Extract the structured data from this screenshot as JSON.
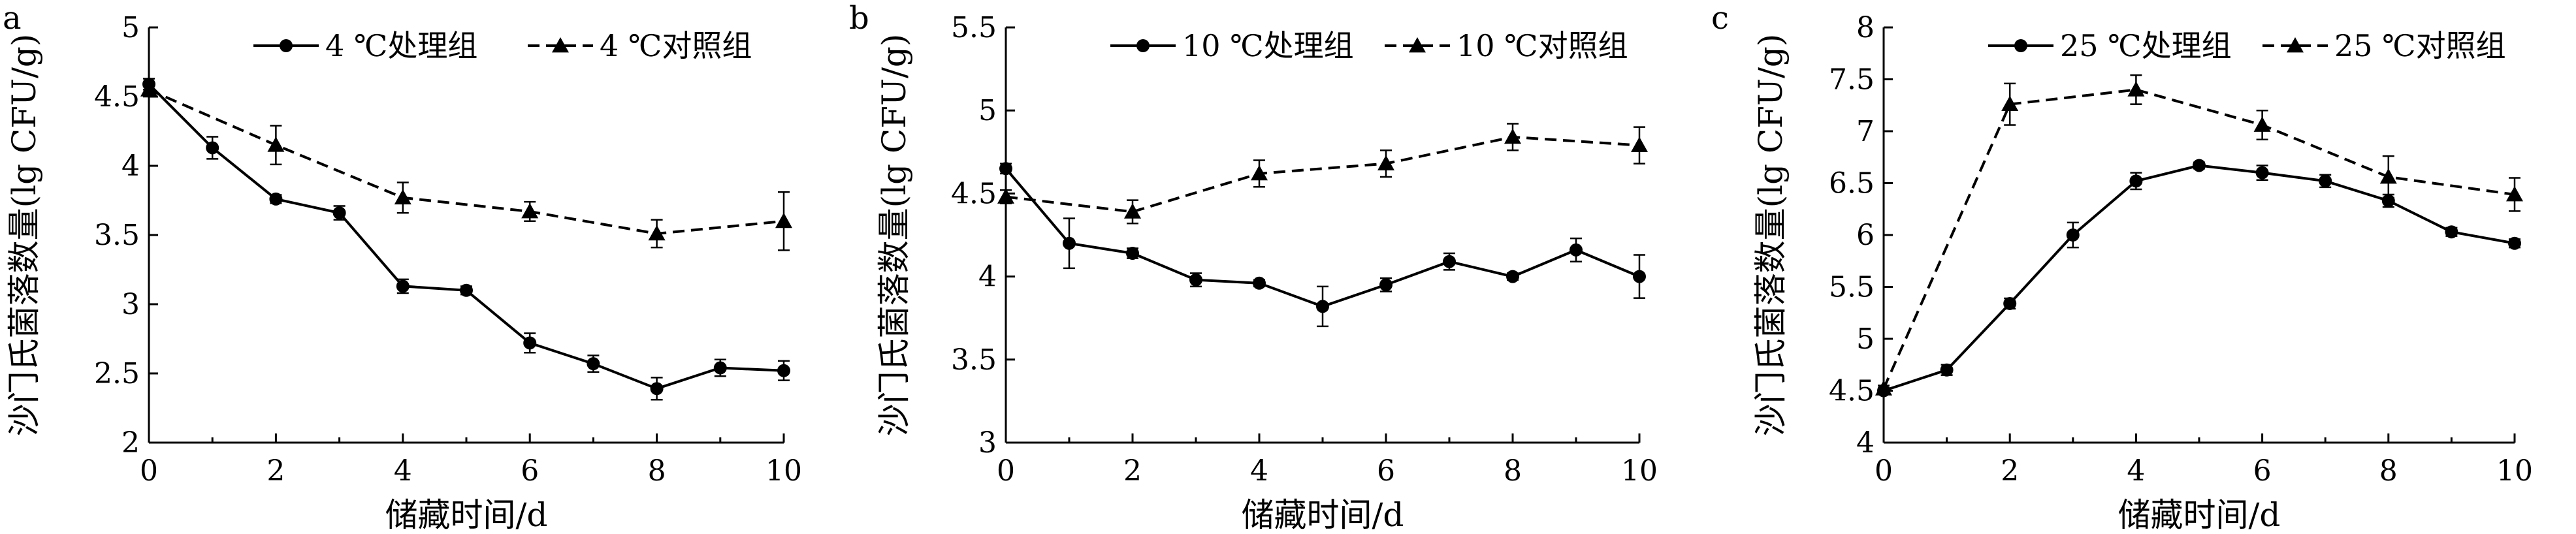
{
  "chart_data": [
    {
      "type": "line",
      "panel_label": "a",
      "xlabel": "储藏时间/d",
      "ylabel": "沙门氏菌落数量(lg CFU/g)",
      "xlim": [
        0,
        10
      ],
      "ylim": [
        2,
        5
      ],
      "xticks": [
        "0",
        "2",
        "4",
        "6",
        "8",
        "10"
      ],
      "yticks": [
        "2",
        "2.5",
        "3",
        "3.5",
        "4",
        "4.5",
        "5"
      ],
      "grid": false,
      "legend_position": "top",
      "series": [
        {
          "name": "4 ℃处理组",
          "line": "solid",
          "marker": "circle",
          "x": [
            0,
            1,
            2,
            3,
            4,
            5,
            6,
            7,
            8,
            9,
            10
          ],
          "values": [
            4.59,
            4.13,
            3.76,
            3.66,
            3.13,
            3.1,
            2.72,
            2.57,
            2.39,
            2.54,
            2.52
          ],
          "errors": [
            0.04,
            0.08,
            0.03,
            0.05,
            0.05,
            0.03,
            0.07,
            0.06,
            0.08,
            0.06,
            0.07
          ]
        },
        {
          "name": "4 ℃对照组",
          "line": "dashed",
          "marker": "triangle",
          "x": [
            0,
            2,
            4,
            6,
            8,
            10
          ],
          "values": [
            4.55,
            4.15,
            3.77,
            3.67,
            3.51,
            3.6
          ],
          "errors": [
            0.05,
            0.14,
            0.11,
            0.07,
            0.1,
            0.21
          ]
        }
      ]
    },
    {
      "type": "line",
      "panel_label": "b",
      "xlabel": "储藏时间/d",
      "ylabel": "沙门氏菌落数量(lg CFU/g)",
      "xlim": [
        0,
        10
      ],
      "ylim": [
        3,
        5.5
      ],
      "xticks": [
        "0",
        "2",
        "4",
        "6",
        "8",
        "10"
      ],
      "yticks": [
        "3",
        "3.5",
        "4",
        "4.5",
        "5",
        "5.5"
      ],
      "grid": false,
      "legend_position": "top",
      "series": [
        {
          "name": "10 ℃处理组",
          "line": "solid",
          "marker": "circle",
          "x": [
            0,
            1,
            2,
            3,
            4,
            5,
            6,
            7,
            8,
            9,
            10
          ],
          "values": [
            4.65,
            4.2,
            4.14,
            3.98,
            3.96,
            3.82,
            3.95,
            4.09,
            4.0,
            4.16,
            4.0
          ],
          "errors": [
            0.03,
            0.15,
            0.03,
            0.04,
            0.02,
            0.12,
            0.04,
            0.05,
            0.02,
            0.07,
            0.13
          ]
        },
        {
          "name": "10 ℃对照组",
          "line": "dashed",
          "marker": "triangle",
          "x": [
            0,
            2,
            4,
            6,
            8,
            10
          ],
          "values": [
            4.48,
            4.39,
            4.62,
            4.68,
            4.84,
            4.79
          ],
          "errors": [
            0.04,
            0.07,
            0.08,
            0.08,
            0.08,
            0.11
          ]
        }
      ]
    },
    {
      "type": "line",
      "panel_label": "c",
      "xlabel": "储藏时间/d",
      "ylabel": "沙门氏菌落数量(lg CFU/g)",
      "xlim": [
        0,
        10
      ],
      "ylim": [
        4,
        8
      ],
      "xticks": [
        "0",
        "2",
        "4",
        "6",
        "8",
        "10"
      ],
      "yticks": [
        "4",
        "4.5",
        "5",
        "5.5",
        "6",
        "6.5",
        "7",
        "7.5",
        "8"
      ],
      "grid": false,
      "legend_position": "top",
      "series": [
        {
          "name": "25 ℃处理组",
          "line": "solid",
          "marker": "circle",
          "x": [
            0,
            1,
            2,
            3,
            4,
            5,
            6,
            7,
            8,
            9,
            10
          ],
          "values": [
            4.5,
            4.7,
            5.34,
            6.0,
            6.52,
            6.67,
            6.6,
            6.52,
            6.33,
            6.03,
            5.92
          ],
          "errors": [
            0.03,
            0.05,
            0.05,
            0.12,
            0.08,
            0.03,
            0.07,
            0.06,
            0.06,
            0.04,
            0.04
          ]
        },
        {
          "name": "25 ℃对照组",
          "line": "dashed",
          "marker": "triangle",
          "x": [
            0,
            2,
            4,
            6,
            8,
            10
          ],
          "values": [
            4.52,
            7.26,
            7.4,
            7.06,
            6.56,
            6.39
          ],
          "errors": [
            0.03,
            0.2,
            0.14,
            0.14,
            0.2,
            0.16
          ]
        }
      ]
    }
  ]
}
